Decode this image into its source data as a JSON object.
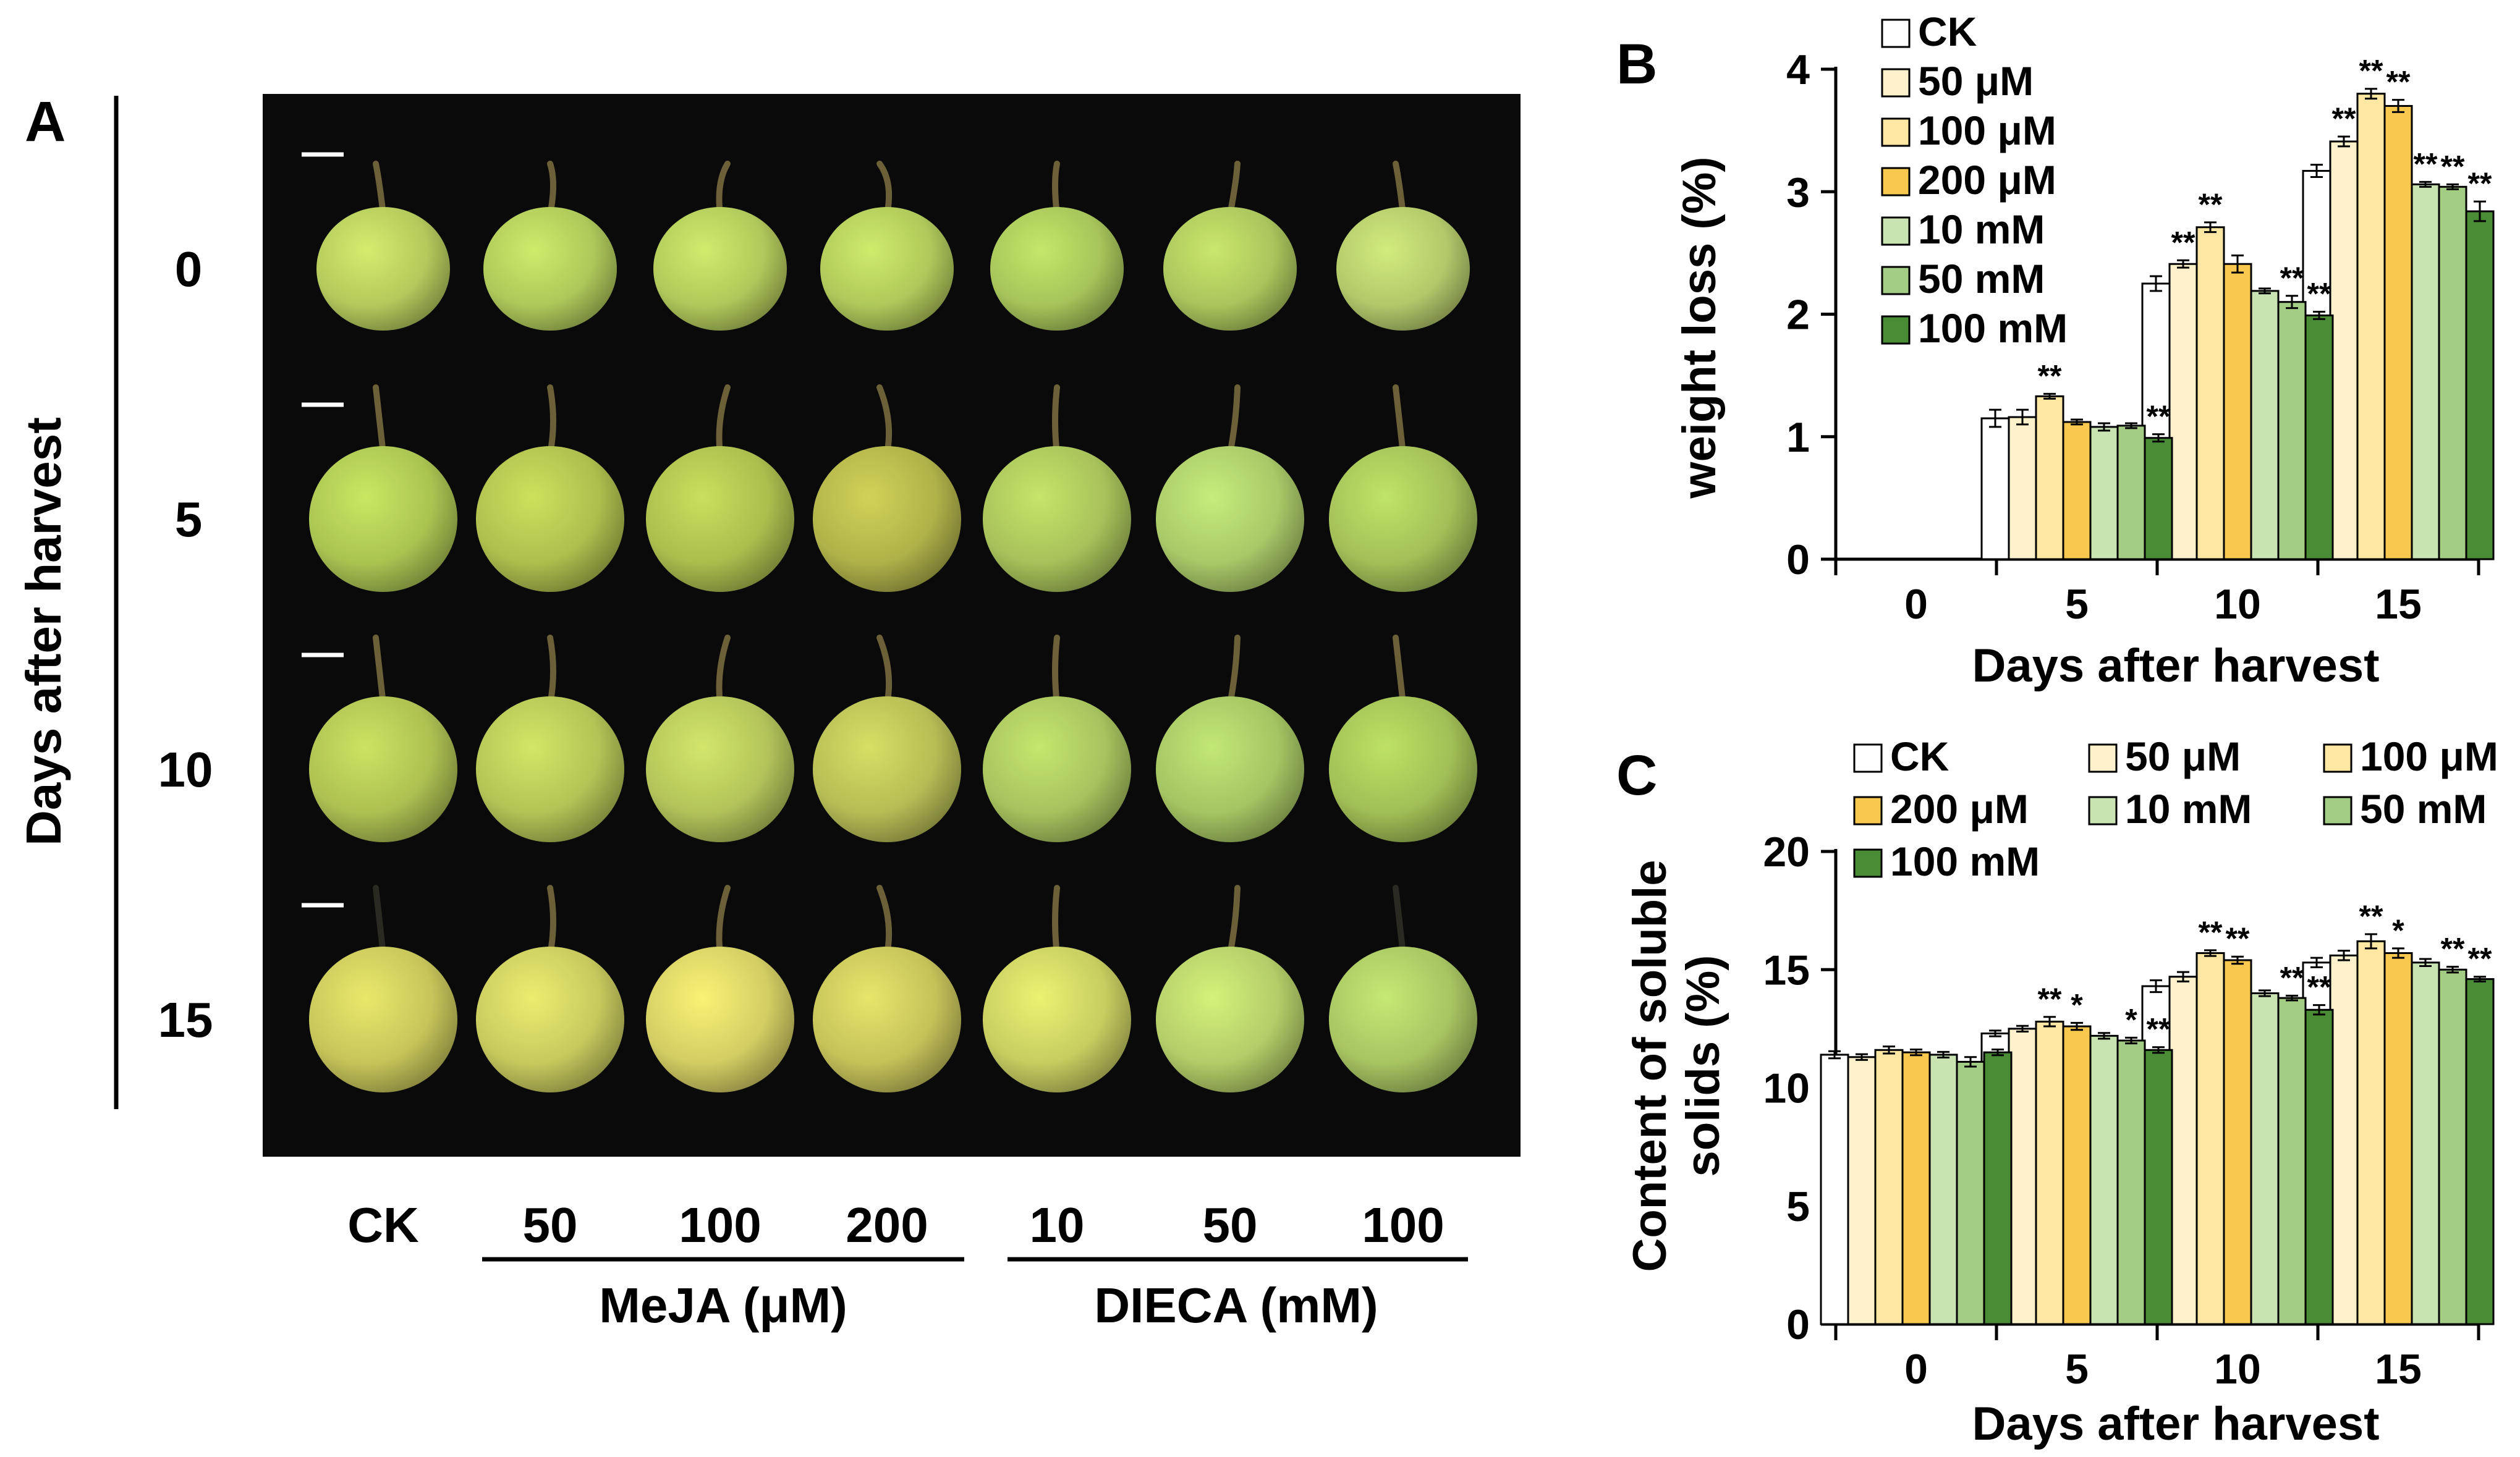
{
  "panel_a": {
    "panel_letter": "A",
    "row_axis_label": "Days after harvest",
    "rows": [
      "0",
      "5",
      "10",
      "15"
    ],
    "columns": [
      "CK",
      "50",
      "100",
      "200",
      "10",
      "50",
      "100"
    ],
    "group_labels": [
      "MeJA (μM)",
      "DIECA (mM)"
    ],
    "fruit_colors": [
      [
        "#b3c95c",
        "#aec85a",
        "#b0c85b",
        "#afc85b",
        "#a6c45a",
        "#aac55c",
        "#b2c86a"
      ],
      [
        "#aac452",
        "#afbe4e",
        "#abbd4e",
        "#b0b24a",
        "#a7c25a",
        "#a9c868",
        "#a3c058"
      ],
      [
        "#adc052",
        "#b4c356",
        "#b3c35a",
        "#b6bd55",
        "#a7c35e",
        "#a5c463",
        "#a1bf56"
      ],
      [
        "#c6c55a",
        "#c7c95e",
        "#d3cd63",
        "#c5c25a",
        "#c7cd60",
        "#b3cd68",
        "#a8c562"
      ]
    ]
  },
  "chart_data": [
    {
      "panel_letter": "B",
      "type": "bar",
      "xlabel": "Days after harvest",
      "ylabel": "weight loss (%)",
      "categories": [
        "0",
        "5",
        "10",
        "15"
      ],
      "ylim": [
        0,
        4
      ],
      "yticks": [
        "0",
        "1",
        "2",
        "3",
        "4"
      ],
      "legend_position": "top-left",
      "legend_columns": 1,
      "series": [
        {
          "name": "CK",
          "color": "#ffffff",
          "values": [
            0,
            1.15,
            2.25,
            3.17
          ],
          "errors": [
            0,
            0.07,
            0.06,
            0.05
          ],
          "marks": [
            "",
            "",
            "",
            ""
          ]
        },
        {
          "name": "50 μM",
          "color": "#fdf1cc",
          "values": [
            0,
            1.16,
            2.41,
            3.41
          ],
          "errors": [
            0,
            0.06,
            0.03,
            0.04
          ],
          "marks": [
            "",
            "",
            "**",
            "**"
          ]
        },
        {
          "name": "100 μM",
          "color": "#fde7a2",
          "values": [
            0,
            1.33,
            2.71,
            3.8
          ],
          "errors": [
            0,
            0.02,
            0.04,
            0.04
          ],
          "marks": [
            "",
            "**",
            "**",
            "**"
          ]
        },
        {
          "name": "200 μM",
          "color": "#f9c94f",
          "values": [
            0,
            1.12,
            2.41,
            3.7
          ],
          "errors": [
            0,
            0.02,
            0.07,
            0.05
          ],
          "marks": [
            "",
            "",
            "",
            "**"
          ]
        },
        {
          "name": "10 mM",
          "color": "#c9e3b3",
          "values": [
            0,
            1.08,
            2.19,
            3.06
          ],
          "errors": [
            0,
            0.03,
            0.02,
            0.02
          ],
          "marks": [
            "",
            "",
            "",
            "**"
          ]
        },
        {
          "name": "50 mM",
          "color": "#a3cc84",
          "values": [
            0,
            1.09,
            2.1,
            3.04
          ],
          "errors": [
            0,
            0.02,
            0.05,
            0.02
          ],
          "marks": [
            "",
            "",
            "**",
            "**"
          ]
        },
        {
          "name": "100 mM",
          "color": "#4a8c36",
          "values": [
            0,
            0.99,
            1.99,
            2.84
          ],
          "errors": [
            0,
            0.03,
            0.03,
            0.08
          ],
          "marks": [
            "",
            "**",
            "**",
            "**"
          ]
        }
      ]
    },
    {
      "panel_letter": "C",
      "type": "bar",
      "xlabel": "Days after harvest",
      "ylabel": "Content of soluble solids (%)",
      "categories": [
        "0",
        "5",
        "10",
        "15"
      ],
      "ylim": [
        0,
        20
      ],
      "yticks": [
        "0",
        "5",
        "10",
        "15",
        "20"
      ],
      "legend_position": "top",
      "legend_columns": 3,
      "series": [
        {
          "name": "CK",
          "color": "#ffffff",
          "values": [
            11.4,
            12.3,
            14.3,
            15.3
          ],
          "errors": [
            0.15,
            0.12,
            0.25,
            0.2
          ],
          "marks": [
            "",
            "",
            "",
            ""
          ]
        },
        {
          "name": "50 μM",
          "color": "#fdf1cc",
          "values": [
            11.3,
            12.5,
            14.7,
            15.6
          ],
          "errors": [
            0.12,
            0.12,
            0.2,
            0.2
          ],
          "marks": [
            "",
            "",
            "",
            ""
          ]
        },
        {
          "name": "100 μM",
          "color": "#fde7a2",
          "values": [
            11.6,
            12.8,
            15.7,
            16.2
          ],
          "errors": [
            0.15,
            0.2,
            0.12,
            0.3
          ],
          "marks": [
            "",
            "**",
            "**",
            "**"
          ]
        },
        {
          "name": "200 μM",
          "color": "#f9c94f",
          "values": [
            11.5,
            12.6,
            15.4,
            15.7
          ],
          "errors": [
            0.12,
            0.15,
            0.15,
            0.2
          ],
          "marks": [
            "",
            "*",
            "**",
            "*"
          ]
        },
        {
          "name": "10 mM",
          "color": "#c9e3b3",
          "values": [
            11.4,
            12.2,
            14.0,
            15.3
          ],
          "errors": [
            0.12,
            0.12,
            0.12,
            0.15
          ],
          "marks": [
            "",
            "",
            "",
            ""
          ]
        },
        {
          "name": "50 mM",
          "color": "#a3cc84",
          "values": [
            11.1,
            12.0,
            13.8,
            15.0
          ],
          "errors": [
            0.2,
            0.12,
            0.1,
            0.12
          ],
          "marks": [
            "",
            "*",
            "**",
            "**"
          ]
        },
        {
          "name": "100 mM",
          "color": "#4a8c36",
          "values": [
            11.5,
            11.6,
            13.3,
            14.6
          ],
          "errors": [
            0.12,
            0.12,
            0.2,
            0.1
          ],
          "marks": [
            "",
            "**",
            "**",
            "**"
          ]
        }
      ]
    }
  ]
}
